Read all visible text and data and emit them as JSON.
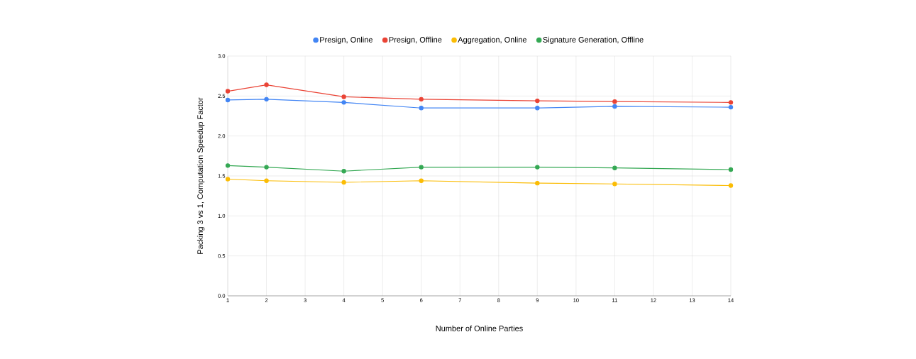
{
  "chart_data": {
    "type": "line",
    "xlabel": "Number of Online Parties",
    "ylabel": "Packing 3 vs 1, Computation Speedup Factor",
    "x": [
      1,
      2,
      4,
      6,
      9,
      11,
      14
    ],
    "series": [
      {
        "name": "Presign, Online",
        "color": "#4285f4",
        "values": [
          2.45,
          2.46,
          2.42,
          2.35,
          2.35,
          2.37,
          2.36
        ]
      },
      {
        "name": "Presign, Offline",
        "color": "#ea4335",
        "values": [
          2.56,
          2.64,
          2.49,
          2.46,
          2.44,
          2.43,
          2.42
        ]
      },
      {
        "name": "Aggregation, Online",
        "color": "#fbbc04",
        "values": [
          1.46,
          1.44,
          1.42,
          1.44,
          1.41,
          1.4,
          1.38
        ]
      },
      {
        "name": "Signature Generation, Offline",
        "color": "#34a853",
        "values": [
          1.63,
          1.61,
          1.56,
          1.61,
          1.61,
          1.6,
          1.58
        ]
      }
    ],
    "xlim": [
      1,
      14
    ],
    "xticks": [
      1,
      2,
      3,
      4,
      5,
      6,
      7,
      8,
      9,
      10,
      11,
      12,
      13,
      14
    ],
    "ylim": [
      0,
      3
    ],
    "yticks": [
      {
        "value": 0,
        "label": "0.0"
      },
      {
        "value": 0.5,
        "label": "0.5"
      },
      {
        "value": 1,
        "label": "1.0"
      },
      {
        "value": 1.5,
        "label": "1.5"
      },
      {
        "value": 2,
        "label": "2.0"
      },
      {
        "value": 2.5,
        "label": "2.5"
      },
      {
        "value": 3,
        "label": "3.0"
      }
    ],
    "grid": true,
    "legend": "top",
    "marker": "circle",
    "line_style": "solid"
  }
}
